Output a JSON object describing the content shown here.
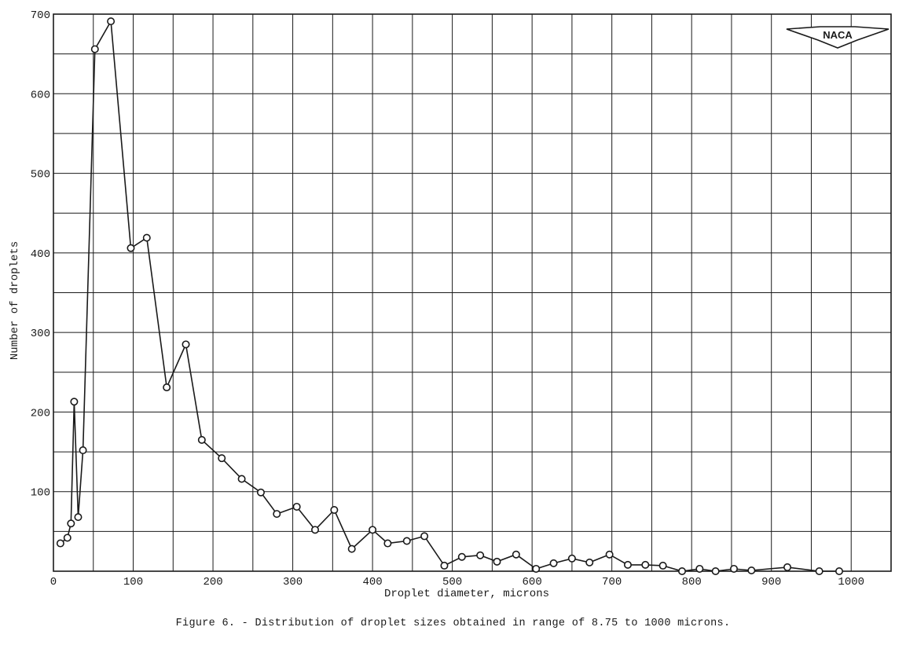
{
  "figure": {
    "caption": "Figure 6. - Distribution of droplet sizes obtained in range of 8.75 to 1000 microns.",
    "logo_text": "NACA",
    "ink_color": "#1a1a1a",
    "background": "#ffffff"
  },
  "chart_data": {
    "type": "line",
    "title": "",
    "xlabel": "Droplet diameter, microns",
    "ylabel": "Number of droplets",
    "xlim": [
      0,
      1050
    ],
    "ylim": [
      0,
      700
    ],
    "xticks": [
      0,
      100,
      200,
      300,
      400,
      500,
      600,
      700,
      800,
      900,
      1000
    ],
    "xtick_labels": [
      "0",
      "100",
      "200",
      "300",
      "400",
      "500",
      "600",
      "700",
      "800",
      "900",
      "1000"
    ],
    "yticks": [
      100,
      200,
      300,
      400,
      500,
      600,
      700
    ],
    "ytick_labels": [
      "100",
      "200",
      "300",
      "400",
      "500",
      "600",
      "700"
    ],
    "x_grid_step": 50,
    "y_grid_step": 50,
    "grid": true,
    "markers": "open circles",
    "series": [
      {
        "x": [
          8.75,
          17.5,
          22,
          26,
          31,
          37,
          52,
          72,
          97,
          117,
          142,
          166,
          186,
          211,
          236,
          260,
          280,
          305,
          328,
          352,
          374,
          400,
          419,
          443,
          465,
          490,
          512,
          535,
          556,
          580,
          605,
          627,
          650,
          672,
          697,
          720,
          742,
          764,
          788,
          810,
          830,
          853,
          875,
          920,
          960,
          985
        ],
        "y": [
          35,
          42,
          60,
          213,
          68,
          152,
          656,
          691,
          406,
          419,
          231,
          285,
          165,
          142,
          116,
          99,
          72,
          81,
          52,
          77,
          28,
          52,
          35,
          38,
          44,
          7,
          18,
          20,
          12,
          21,
          3,
          10,
          16,
          11,
          21,
          8,
          8,
          7,
          0,
          3,
          0,
          3,
          1,
          5,
          0,
          0
        ]
      }
    ]
  }
}
